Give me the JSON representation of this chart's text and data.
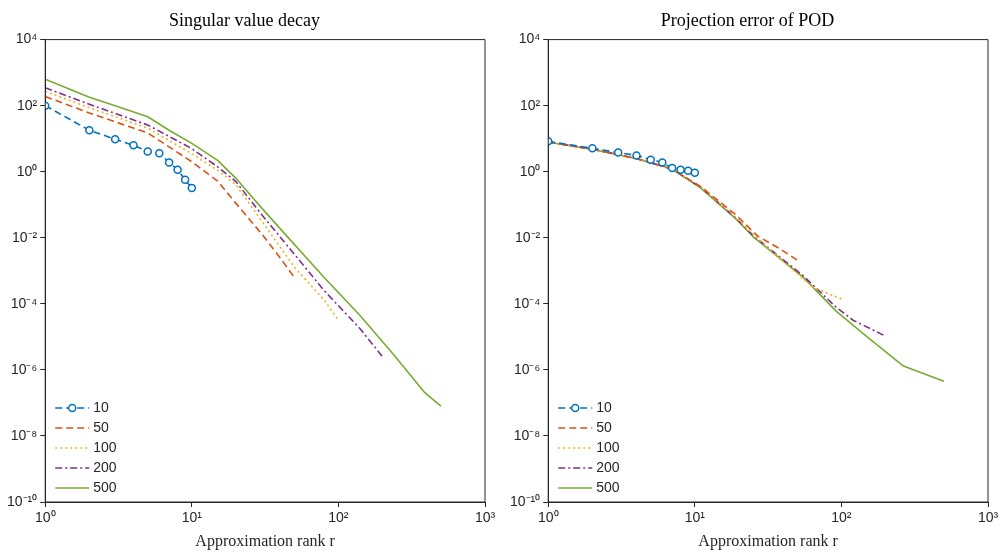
{
  "chart_data": [
    {
      "type": "line",
      "title": "Singular value decay",
      "xlabel": "Approximation rank r",
      "log": "xy",
      "grid": false,
      "legend": "bottom left",
      "xlim": [
        1,
        1000
      ],
      "xticks": [
        {
          "value": 1,
          "label": "10⁰"
        },
        {
          "value": 10,
          "label": "10¹"
        },
        {
          "value": 100,
          "label": "10²"
        },
        {
          "value": 1000,
          "label": "10³"
        }
      ],
      "ylim": [
        1e-10,
        10000
      ],
      "yticks": [
        {
          "value": 1e-10,
          "label": "10⁻¹⁰"
        },
        {
          "value": 1e-08,
          "label": "10⁻⁸"
        },
        {
          "value": 1e-06,
          "label": "10⁻⁶"
        },
        {
          "value": 0.0001,
          "label": "10⁻⁴"
        },
        {
          "value": 0.01,
          "label": "10⁻²"
        },
        {
          "value": 1,
          "label": "10⁰"
        },
        {
          "value": 100,
          "label": "10²"
        },
        {
          "value": 10000,
          "label": "10⁴"
        }
      ],
      "series": [
        {
          "name": "10",
          "color": "#0072bd",
          "line_style": "dashed",
          "marker": "circle",
          "x": [
            1,
            2,
            3,
            4,
            5,
            6,
            7,
            8,
            9,
            10
          ],
          "values": [
            100,
            18,
            9.6,
            6.3,
            4.1,
            3.6,
            1.9,
            1.15,
            0.57,
            0.32
          ]
        },
        {
          "name": "50",
          "color": "#d95319",
          "line_style": "dashed",
          "marker": "none",
          "x": [
            1,
            2,
            5,
            10,
            15,
            20,
            30,
            40,
            50
          ],
          "values": [
            190,
            60,
            15,
            2,
            0.52,
            0.11,
            0.013,
            0.0025,
            0.00063
          ]
        },
        {
          "name": "100",
          "color": "#edb120",
          "line_style": "dotted",
          "marker": "none",
          "x": [
            1,
            2,
            5,
            10,
            15,
            20,
            30,
            50,
            80,
            100
          ],
          "values": [
            270,
            87,
            21,
            3.5,
            1.1,
            0.4,
            0.032,
            0.0013,
            0.00013,
            3.2e-05
          ]
        },
        {
          "name": "200",
          "color": "#7e2f8e",
          "line_style": "dashdot",
          "marker": "none",
          "x": [
            1,
            2,
            5,
            10,
            15,
            20,
            30,
            50,
            80,
            140,
            200
          ],
          "values": [
            350,
            110,
            26,
            5,
            1.4,
            0.5,
            0.05,
            0.0032,
            0.00025,
            1.8e-05,
            2.5e-06
          ]
        },
        {
          "name": "500",
          "color": "#77ac30",
          "line_style": "solid",
          "marker": "none",
          "x": [
            1,
            2,
            3,
            5,
            7,
            10,
            15,
            20,
            30,
            50,
            80,
            140,
            230,
            390,
            500
          ],
          "values": [
            630,
            180,
            100,
            46,
            18,
            7.2,
            2.2,
            0.63,
            0.079,
            0.0063,
            0.00063,
            4.5e-05,
            3.5e-06,
            2e-07,
            8e-08
          ]
        }
      ]
    },
    {
      "type": "line",
      "title": "Projection error of POD",
      "xlabel": "Approximation rank r",
      "log": "xy",
      "grid": false,
      "legend": "bottom left",
      "xlim": [
        1,
        1000
      ],
      "xticks": [
        {
          "value": 1,
          "label": "10⁰"
        },
        {
          "value": 10,
          "label": "10¹"
        },
        {
          "value": 100,
          "label": "10²"
        },
        {
          "value": 1000,
          "label": "10³"
        }
      ],
      "ylim": [
        1e-10,
        10000
      ],
      "yticks": [
        {
          "value": 1e-10,
          "label": "10⁻¹⁰"
        },
        {
          "value": 1e-08,
          "label": "10⁻⁸"
        },
        {
          "value": 1e-06,
          "label": "10⁻⁶"
        },
        {
          "value": 0.0001,
          "label": "10⁻⁴"
        },
        {
          "value": 0.01,
          "label": "10⁻²"
        },
        {
          "value": 1,
          "label": "10⁰"
        },
        {
          "value": 100,
          "label": "10²"
        },
        {
          "value": 10000,
          "label": "10⁴"
        }
      ],
      "series": [
        {
          "name": "10",
          "color": "#0072bd",
          "line_style": "dashed",
          "marker": "circle",
          "x": [
            1,
            2,
            3,
            4,
            5,
            6,
            7,
            8,
            9,
            10
          ],
          "values": [
            8.3,
            5.1,
            3.8,
            3.1,
            2.3,
            1.9,
            1.3,
            1.15,
            1.07,
            0.93
          ]
        },
        {
          "name": "50",
          "color": "#d95319",
          "line_style": "dashed",
          "marker": "none",
          "x": [
            1,
            2,
            4,
            7,
            11,
            19,
            27,
            37,
            50
          ],
          "values": [
            7.9,
            4.8,
            2.5,
            1.2,
            0.35,
            0.05,
            0.011,
            0.005,
            0.0021
          ]
        },
        {
          "name": "100",
          "color": "#edb120",
          "line_style": "dotted",
          "marker": "none",
          "x": [
            1,
            2,
            4,
            7,
            11,
            19,
            25,
            42,
            64,
            100
          ],
          "values": [
            7.9,
            4.8,
            2.5,
            1.2,
            0.34,
            0.042,
            0.0126,
            0.0016,
            0.00032,
            0.00014
          ]
        },
        {
          "name": "200",
          "color": "#7e2f8e",
          "line_style": "dashdot",
          "marker": "none",
          "x": [
            1,
            2,
            4,
            7,
            11,
            19,
            25,
            55,
            92,
            120,
            200
          ],
          "values": [
            7.9,
            4.8,
            2.5,
            1.2,
            0.33,
            0.04,
            0.0117,
            0.0007,
            7.9e-05,
            3.2e-05,
            1.05e-05
          ]
        },
        {
          "name": "500",
          "color": "#77ac30",
          "line_style": "solid",
          "marker": "none",
          "x": [
            1,
            2,
            4,
            7,
            11,
            19,
            25,
            55,
            92,
            155,
            265,
            500
          ],
          "values": [
            7.8,
            4.8,
            2.5,
            1.2,
            0.32,
            0.038,
            0.0107,
            0.00063,
            6e-05,
            8.9e-06,
            1.3e-06,
            4.5e-07
          ]
        }
      ]
    }
  ]
}
